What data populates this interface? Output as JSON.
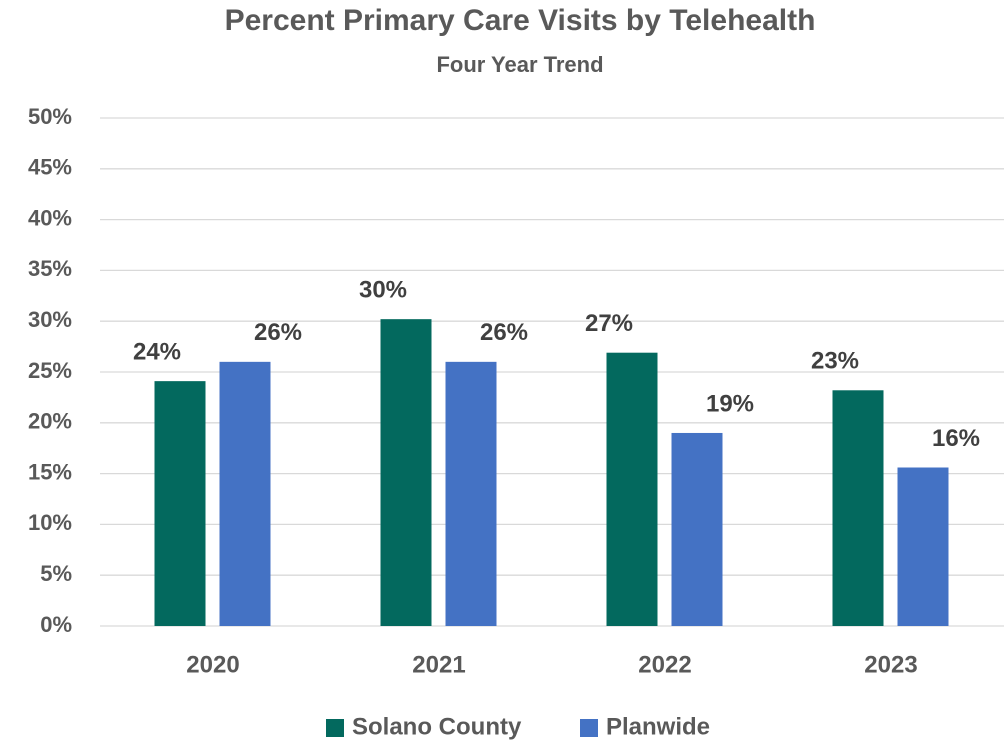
{
  "chart_data": {
    "type": "bar",
    "title": "Percent Primary Care Visits by Telehealth",
    "subtitle": "Four Year Trend",
    "categories": [
      "2020",
      "2021",
      "2022",
      "2023"
    ],
    "series": [
      {
        "name": "Solano County",
        "color": "#03695e",
        "values": [
          24.1,
          30.2,
          26.9,
          23.2
        ],
        "value_labels": [
          "24%",
          "30%",
          "27%",
          "23%"
        ]
      },
      {
        "name": "Planwide",
        "color": "#4472c4",
        "values": [
          26,
          26,
          19,
          15.6
        ],
        "value_labels": [
          "26%",
          "26%",
          "19%",
          "16%"
        ]
      }
    ],
    "ylim": [
      0,
      50
    ],
    "yticks": [
      {
        "value": 0,
        "label": "0%"
      },
      {
        "value": 5,
        "label": "5%"
      },
      {
        "value": 10,
        "label": "10%"
      },
      {
        "value": 15,
        "label": "15%"
      },
      {
        "value": 20,
        "label": "20%"
      },
      {
        "value": 25,
        "label": "25%"
      },
      {
        "value": 30,
        "label": "30%"
      },
      {
        "value": 35,
        "label": "35%"
      },
      {
        "value": 40,
        "label": "40%"
      },
      {
        "value": 45,
        "label": "45%"
      },
      {
        "value": 50,
        "label": "50%"
      }
    ],
    "grid": true,
    "legend": "bottom"
  }
}
